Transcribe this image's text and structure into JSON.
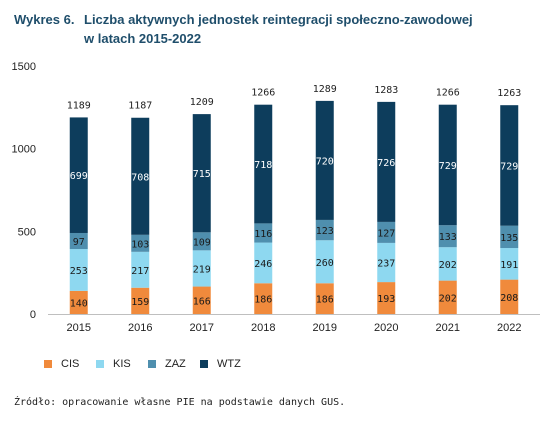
{
  "figure": {
    "number": "Wykres 6.",
    "title_line1": "Liczba aktywnych jednostek reintegracji społeczno-zawodowej",
    "title_line2": "w latach 2015-2022"
  },
  "source": "Źródło: opracowanie własne PIE na podstawie danych GUS.",
  "chart_data": {
    "type": "bar",
    "stacked": true,
    "categories": [
      "2015",
      "2016",
      "2017",
      "2018",
      "2019",
      "2020",
      "2021",
      "2022"
    ],
    "series": [
      {
        "name": "CIS",
        "color": "#f08a3c",
        "values": [
          140,
          159,
          166,
          186,
          186,
          193,
          202,
          208
        ]
      },
      {
        "name": "KIS",
        "color": "#8ed8f0",
        "values": [
          253,
          217,
          219,
          246,
          260,
          237,
          202,
          191
        ]
      },
      {
        "name": "ZAZ",
        "color": "#4f8fae",
        "values": [
          97,
          103,
          109,
          116,
          123,
          127,
          133,
          135
        ]
      },
      {
        "name": "WTZ",
        "color": "#0d3d5c",
        "values": [
          699,
          708,
          715,
          718,
          720,
          726,
          729,
          729
        ]
      }
    ],
    "totals": [
      1189,
      1187,
      1209,
      1266,
      1289,
      1283,
      1266,
      1263
    ],
    "yticks": [
      0,
      500,
      1000,
      1500
    ],
    "ylim": [
      0,
      1500
    ],
    "grid": false,
    "legend_position": "bottom-left"
  }
}
